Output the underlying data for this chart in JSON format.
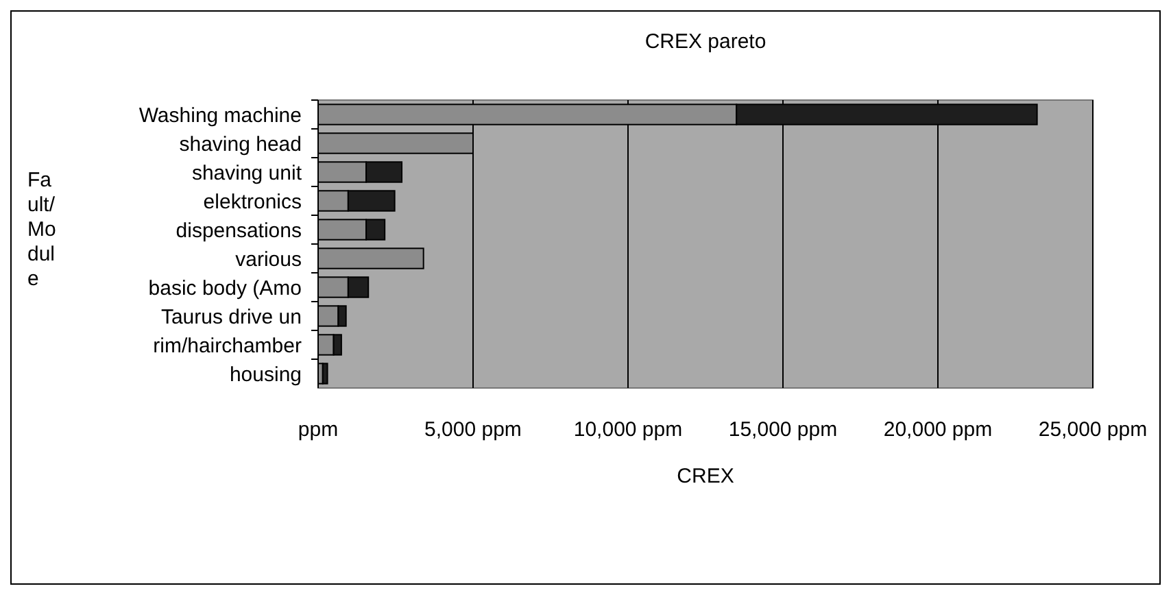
{
  "chart_data": {
    "type": "bar",
    "orientation": "horizontal",
    "stacked": true,
    "title": "CREX pareto",
    "xlabel": "CREX",
    "ylabel": "Fault/Module",
    "categories": [
      "Washing machine",
      "shaving head",
      "shaving unit",
      "elektronics",
      "dispensations",
      "various",
      "basic body (Amo",
      "Taurus drive un",
      "rim/hairchamber",
      "housing"
    ],
    "series": [
      {
        "color": "#8c8c8c",
        "values": [
          13500,
          5000,
          1550,
          970,
          1550,
          3400,
          970,
          650,
          500,
          150
        ]
      },
      {
        "color": "#1e1e1e",
        "values": [
          9700,
          0,
          1150,
          1500,
          600,
          0,
          650,
          250,
          250,
          150
        ]
      }
    ],
    "xlim": [
      0,
      25000
    ],
    "xticks": [
      {
        "value": 0,
        "label": "ppm"
      },
      {
        "value": 5000,
        "label": "5,000 ppm"
      },
      {
        "value": 10000,
        "label": "10,000 ppm"
      },
      {
        "value": 15000,
        "label": "15,000 ppm"
      },
      {
        "value": 20000,
        "label": "20,000 ppm"
      },
      {
        "value": 25000,
        "label": "25,000 ppm"
      }
    ],
    "grid": "x"
  }
}
